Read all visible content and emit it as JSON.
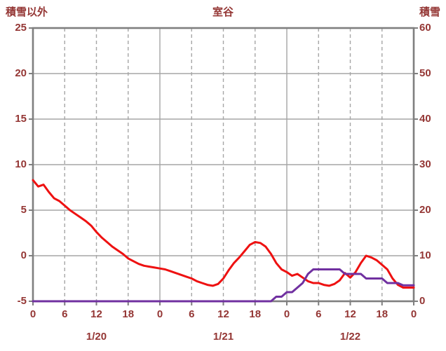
{
  "chart_data": {
    "type": "line",
    "title": "室谷",
    "text_color": "#943634",
    "grid": {
      "line_color": "#a6a6a6",
      "border_color": "#7f7f7f",
      "tick_color": "#7f7f7f"
    },
    "left_axis": {
      "title": "積雪以外",
      "min": -5,
      "max": 25,
      "ticks": [
        25,
        20,
        15,
        10,
        5,
        0,
        -5
      ]
    },
    "right_axis": {
      "title": "積雪",
      "min": 0,
      "max": 60,
      "ticks": [
        60,
        50,
        40,
        30,
        20,
        10,
        0
      ]
    },
    "x": {
      "hours_total": 72,
      "tick_interval": 6,
      "tick_labels": [
        "0",
        "6",
        "12",
        "18",
        "0",
        "6",
        "12",
        "18",
        "0",
        "6",
        "12",
        "18",
        "0"
      ],
      "date_labels": [
        "1/20",
        "1/21",
        "1/22"
      ]
    },
    "series": [
      {
        "name": "積雪以外",
        "axis": "left",
        "color": "#ee1111",
        "values": [
          8.3,
          7.6,
          7.8,
          7.0,
          6.3,
          6.0,
          5.5,
          5.0,
          4.6,
          4.2,
          3.8,
          3.3,
          2.6,
          2.0,
          1.5,
          1.0,
          0.6,
          0.2,
          -0.3,
          -0.6,
          -0.9,
          -1.1,
          -1.2,
          -1.3,
          -1.4,
          -1.5,
          -1.7,
          -1.9,
          -2.1,
          -2.3,
          -2.5,
          -2.8,
          -3.0,
          -3.2,
          -3.3,
          -3.1,
          -2.5,
          -1.6,
          -0.8,
          -0.2,
          0.5,
          1.2,
          1.5,
          1.4,
          1.0,
          0.2,
          -0.8,
          -1.5,
          -1.8,
          -2.2,
          -2.0,
          -2.4,
          -2.8,
          -3.0,
          -3.0,
          -3.2,
          -3.3,
          -3.1,
          -2.7,
          -1.9,
          -2.4,
          -1.8,
          -0.8,
          0.0,
          -0.2,
          -0.5,
          -1.0,
          -1.5,
          -2.5,
          -3.2,
          -3.5,
          -3.5,
          -3.5
        ]
      },
      {
        "name": "積雪",
        "axis": "right",
        "color": "#7030a0",
        "values": [
          0,
          0,
          0,
          0,
          0,
          0,
          0,
          0,
          0,
          0,
          0,
          0,
          0,
          0,
          0,
          0,
          0,
          0,
          0,
          0,
          0,
          0,
          0,
          0,
          0,
          0,
          0,
          0,
          0,
          0,
          0,
          0,
          0,
          0,
          0,
          0,
          0,
          0,
          0,
          0,
          0,
          0,
          0,
          0,
          0,
          0,
          1,
          1,
          2,
          2,
          3,
          4,
          6,
          7,
          7,
          7,
          7,
          7,
          7,
          6,
          6,
          6,
          6,
          5,
          5,
          5,
          5,
          4,
          4,
          4,
          3.5,
          3.5,
          3.5
        ]
      }
    ]
  }
}
